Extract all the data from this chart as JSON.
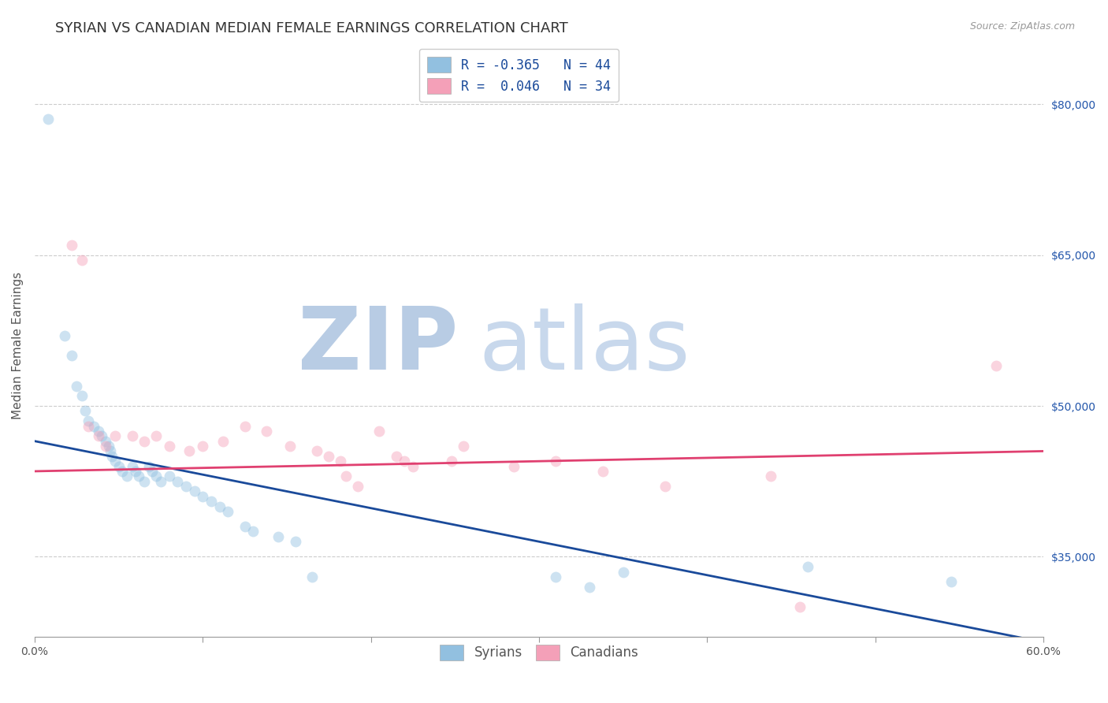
{
  "title": "SYRIAN VS CANADIAN MEDIAN FEMALE EARNINGS CORRELATION CHART",
  "source_text": "Source: ZipAtlas.com",
  "ylabel": "Median Female Earnings",
  "xlim": [
    0.0,
    0.6
  ],
  "ylim": [
    27000,
    85000
  ],
  "yticks": [
    35000,
    50000,
    65000,
    80000
  ],
  "ytick_labels": [
    "$35,000",
    "$50,000",
    "$65,000",
    "$80,000"
  ],
  "xticks": [
    0.0,
    0.1,
    0.2,
    0.3,
    0.4,
    0.5,
    0.6
  ],
  "xtick_labels_show": [
    "0.0%",
    "",
    "",
    "",
    "",
    "",
    "60.0%"
  ],
  "legend_r_line1": "R = -0.365",
  "legend_n_line1": "N = 44",
  "legend_r_line2": "R =  0.046",
  "legend_n_line2": "N = 34",
  "syrians_x": [
    0.008,
    0.018,
    0.022,
    0.025,
    0.028,
    0.03,
    0.032,
    0.035,
    0.038,
    0.04,
    0.042,
    0.044,
    0.045,
    0.046,
    0.048,
    0.05,
    0.052,
    0.055,
    0.058,
    0.06,
    0.062,
    0.065,
    0.068,
    0.07,
    0.072,
    0.075,
    0.08,
    0.085,
    0.09,
    0.095,
    0.1,
    0.105,
    0.11,
    0.115,
    0.125,
    0.13,
    0.145,
    0.155,
    0.165,
    0.31,
    0.33,
    0.35,
    0.46,
    0.545
  ],
  "syrians_y": [
    78500,
    57000,
    55000,
    52000,
    51000,
    49500,
    48500,
    48000,
    47500,
    47000,
    46500,
    46000,
    45500,
    45000,
    44500,
    44000,
    43500,
    43000,
    44000,
    43500,
    43000,
    42500,
    44000,
    43500,
    43000,
    42500,
    43000,
    42500,
    42000,
    41500,
    41000,
    40500,
    40000,
    39500,
    38000,
    37500,
    37000,
    36500,
    33000,
    33000,
    32000,
    33500,
    34000,
    32500
  ],
  "canadians_x": [
    0.022,
    0.028,
    0.032,
    0.038,
    0.042,
    0.048,
    0.058,
    0.065,
    0.072,
    0.08,
    0.092,
    0.1,
    0.112,
    0.125,
    0.138,
    0.152,
    0.168,
    0.175,
    0.182,
    0.205,
    0.215,
    0.22,
    0.225,
    0.255,
    0.285,
    0.31,
    0.338,
    0.375,
    0.248,
    0.438,
    0.455,
    0.572,
    0.185,
    0.192
  ],
  "canadians_y": [
    66000,
    64500,
    48000,
    47000,
    46000,
    47000,
    47000,
    46500,
    47000,
    46000,
    45500,
    46000,
    46500,
    48000,
    47500,
    46000,
    45500,
    45000,
    44500,
    47500,
    45000,
    44500,
    44000,
    46000,
    44000,
    44500,
    43500,
    42000,
    44500,
    43000,
    30000,
    54000,
    43000,
    42000
  ],
  "syrian_line_x": [
    0.0,
    0.6
  ],
  "syrian_line_y": [
    46500,
    26500
  ],
  "canadian_line_x": [
    0.0,
    0.6
  ],
  "canadian_line_y": [
    43500,
    45500
  ],
  "dot_size": 100,
  "dot_alpha": 0.45,
  "syrian_color": "#92C0E0",
  "canadian_color": "#F4A0B8",
  "syrian_line_color": "#1A4A9A",
  "canadian_line_color": "#E04070",
  "background_color": "#ffffff",
  "grid_color": "#cccccc",
  "watermark_zip_color": "#B8CCE4",
  "watermark_atlas_color": "#C8D8EC",
  "watermark_fontsize": 80,
  "title_fontsize": 13,
  "axis_label_fontsize": 11,
  "tick_label_fontsize": 10,
  "legend_fontsize": 12,
  "ytick_color": "#2255AA",
  "bottom_legend_labels": [
    "Syrians",
    "Canadians"
  ]
}
